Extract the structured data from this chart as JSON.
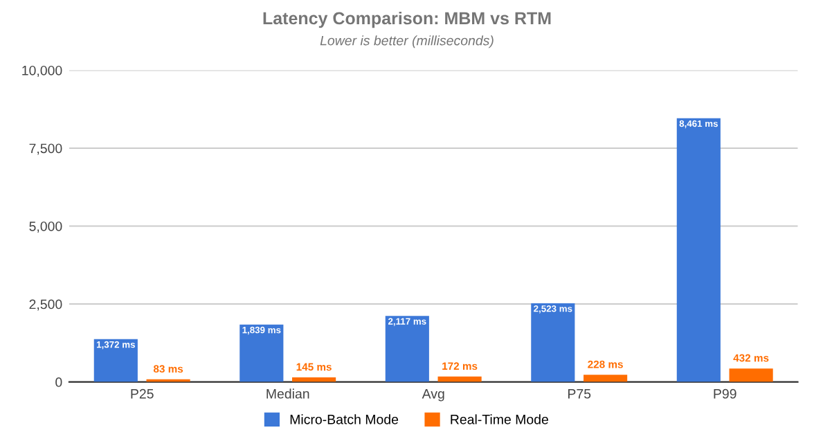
{
  "chart_data": {
    "type": "bar",
    "title": "Latency Comparison: MBM vs RTM",
    "subtitle": "Lower is better (milliseconds)",
    "categories": [
      "P25",
      "Median",
      "Avg",
      "P75",
      "P99"
    ],
    "series": [
      {
        "name": "Micro-Batch Mode",
        "color": "#3c78d8",
        "values": [
          1372,
          1839,
          2117,
          2523,
          8461
        ],
        "value_labels": [
          "1,372 ms",
          "1,839 ms",
          "2,117 ms",
          "2,523 ms",
          "8,461 ms"
        ]
      },
      {
        "name": "Real-Time Mode",
        "color": "#ff6d01",
        "values": [
          83,
          145,
          172,
          228,
          432
        ],
        "value_labels": [
          "83 ms",
          "145 ms",
          "172 ms",
          "228 ms",
          "432 ms"
        ]
      }
    ],
    "ylim": [
      0,
      10000
    ],
    "yticks": [
      {
        "value": 0,
        "label": "0"
      },
      {
        "value": 2500,
        "label": "2,500"
      },
      {
        "value": 5000,
        "label": "5,000"
      },
      {
        "value": 7500,
        "label": "7,500"
      },
      {
        "value": 10000,
        "label": "10,000"
      }
    ],
    "grid": "y",
    "legend": "bottom"
  }
}
